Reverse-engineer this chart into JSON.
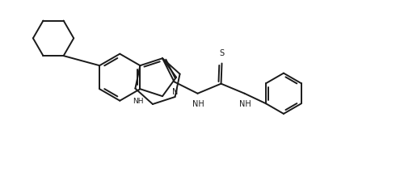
{
  "bg_color": "#ffffff",
  "line_color": "#1a1a1a",
  "line_width": 1.4,
  "figsize": [
    4.9,
    2.18
  ],
  "dpi": 100,
  "xlim": [
    0,
    10
  ],
  "ylim": [
    0,
    4.45
  ]
}
